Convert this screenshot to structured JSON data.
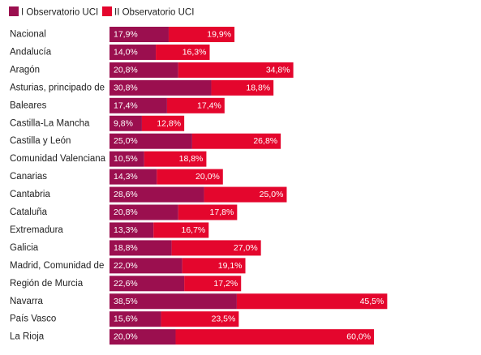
{
  "chart_data": {
    "type": "bar",
    "orientation": "horizontal",
    "stacked": true,
    "legend": "top-left",
    "grid": false,
    "xlim": [
      0,
      105.5
    ],
    "categories": [
      "Nacional",
      "Andalucía",
      "Aragón",
      "Asturias, principado de",
      "Baleares",
      "Castilla-La Mancha",
      "Castilla y León",
      "Comunidad Valenciana",
      "Canarias",
      "Cantabria",
      "Cataluña",
      "Extremadura",
      "Galicia",
      "Madrid, Comunidad de",
      "Región de Murcia",
      "Navarra",
      "País Vasco",
      "La Rioja"
    ],
    "series": [
      {
        "name": "I Observatorio UCI",
        "color": "#9b0f4f",
        "values": [
          17.9,
          14.0,
          20.8,
          30.8,
          17.4,
          9.8,
          25.0,
          10.5,
          14.3,
          28.6,
          20.8,
          13.3,
          18.8,
          22.0,
          22.6,
          38.5,
          15.6,
          20.0
        ],
        "labels": [
          "17,9%",
          "14,0%",
          "20,8%",
          "30,8%",
          "17,4%",
          "9,8%",
          "25,0%",
          "10,5%",
          "14,3%",
          "28,6%",
          "20,8%",
          "13,3%",
          "18,8%",
          "22,0%",
          "22,6%",
          "38,5%",
          "15,6%",
          "20,0%"
        ]
      },
      {
        "name": "II Observatorio UCI",
        "color": "#e4062d",
        "values": [
          19.9,
          16.3,
          34.8,
          18.8,
          17.4,
          12.8,
          26.8,
          18.8,
          20.0,
          25.0,
          17.8,
          16.7,
          27.0,
          19.1,
          17.2,
          45.5,
          23.5,
          60.0
        ],
        "labels": [
          "19,9%",
          "16,3%",
          "34,8%",
          "18,8%",
          "17,4%",
          "12,8%",
          "26,8%",
          "18,8%",
          "20,0%",
          "25,0%",
          "17,8%",
          "16,7%",
          "27,0%",
          "19,1%",
          "17,2%",
          "45,5%",
          "23,5%",
          "60,0%"
        ]
      }
    ]
  }
}
